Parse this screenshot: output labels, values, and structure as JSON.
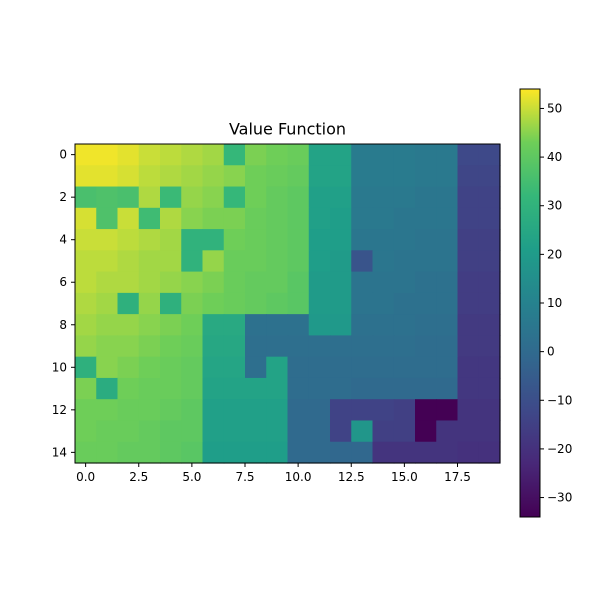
{
  "chart_data": {
    "type": "heatmap",
    "title": "Value Function",
    "xlabel": "",
    "ylabel": "",
    "rows": 15,
    "cols": 20,
    "x_ticks": [
      0,
      2.5,
      5,
      7.5,
      10,
      12.5,
      15,
      17.5
    ],
    "x_tick_labels": [
      "0.0",
      "2.5",
      "5.0",
      "7.5",
      "10.0",
      "12.5",
      "15.0",
      "17.5"
    ],
    "y_ticks": [
      0,
      2,
      4,
      6,
      8,
      10,
      12,
      14
    ],
    "y_tick_labels": [
      "0",
      "2",
      "4",
      "6",
      "8",
      "10",
      "12",
      "14"
    ],
    "colormap": "viridis",
    "value_range": [
      -34,
      54
    ],
    "colorbar_ticks": [
      -30,
      -20,
      -10,
      0,
      10,
      20,
      30,
      40,
      50
    ],
    "colorbar_tick_labels": [
      "−30",
      "−20",
      "−10",
      "0",
      "10",
      "20",
      "30",
      "40",
      "50"
    ],
    "values": [
      [
        53,
        53,
        52,
        50,
        49,
        48,
        47,
        32,
        44,
        43,
        42,
        23,
        23,
        7,
        7,
        7,
        6,
        6,
        -12,
        -12
      ],
      [
        52,
        52,
        51,
        49,
        48,
        47,
        46,
        45,
        43,
        42,
        41,
        23,
        23,
        7,
        7,
        7,
        6,
        6,
        -13,
        -13
      ],
      [
        36,
        37,
        36,
        48,
        33,
        46,
        45,
        32,
        43,
        41,
        40,
        22,
        22,
        6,
        6,
        6,
        5,
        5,
        -14,
        -14
      ],
      [
        51,
        37,
        50,
        34,
        48,
        45,
        44,
        44,
        42,
        41,
        40,
        22,
        21,
        6,
        6,
        5,
        5,
        5,
        -14,
        -14
      ],
      [
        50,
        50,
        49,
        48,
        47,
        30,
        30,
        43,
        42,
        41,
        40,
        21,
        21,
        5,
        5,
        5,
        4,
        4,
        -15,
        -15
      ],
      [
        49,
        49,
        48,
        47,
        47,
        30,
        46,
        42,
        42,
        41,
        40,
        21,
        20,
        -8,
        5,
        4,
        4,
        4,
        -15,
        -15
      ],
      [
        49,
        48,
        48,
        47,
        46,
        45,
        44,
        42,
        41,
        41,
        39,
        20,
        20,
        4,
        4,
        4,
        3,
        3,
        -16,
        -16
      ],
      [
        48,
        47,
        29,
        46,
        29,
        44,
        43,
        42,
        41,
        40,
        39,
        20,
        20,
        4,
        4,
        3,
        3,
        3,
        -16,
        -16
      ],
      [
        47,
        46,
        46,
        45,
        44,
        43,
        26,
        26,
        3,
        3,
        3,
        19,
        19,
        3,
        3,
        3,
        2,
        2,
        -17,
        -17
      ],
      [
        46,
        45,
        45,
        44,
        43,
        42,
        25,
        25,
        2,
        2,
        2,
        2,
        2,
        2,
        2,
        2,
        1,
        1,
        -17,
        -17
      ],
      [
        29,
        45,
        44,
        43,
        42,
        41,
        24,
        24,
        2,
        23,
        1,
        1,
        1,
        1,
        1,
        1,
        1,
        1,
        -18,
        -18
      ],
      [
        44,
        27,
        43,
        42,
        42,
        41,
        23,
        23,
        23,
        23,
        1,
        1,
        1,
        0,
        0,
        0,
        0,
        0,
        -18,
        -18
      ],
      [
        43,
        43,
        42,
        42,
        41,
        40,
        22,
        22,
        22,
        22,
        0,
        0,
        -14,
        -14,
        -14,
        -15,
        -34,
        -34,
        -19,
        -19
      ],
      [
        43,
        42,
        42,
        41,
        40,
        40,
        22,
        22,
        22,
        22,
        0,
        0,
        -14,
        18,
        -15,
        -15,
        -34,
        -19,
        -19,
        -19
      ],
      [
        42,
        42,
        41,
        41,
        40,
        39,
        21,
        21,
        21,
        21,
        0,
        0,
        -1,
        -1,
        -19,
        -19,
        -19,
        -19,
        -20,
        -20
      ]
    ]
  }
}
